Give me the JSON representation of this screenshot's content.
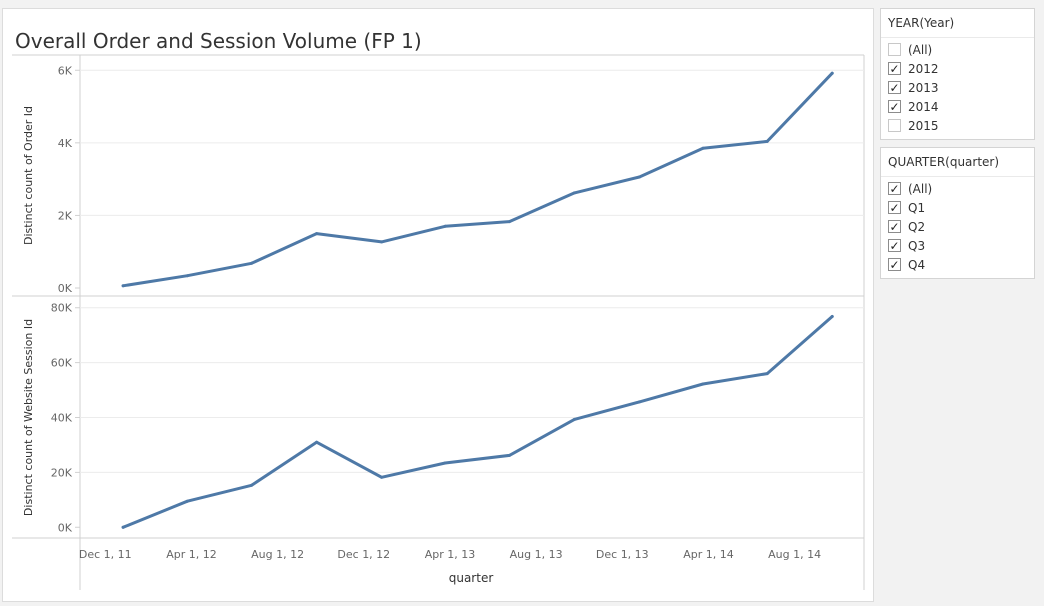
{
  "title": "Overall Order and Session Volume (FP 1)",
  "filters": {
    "year": {
      "title": "YEAR(Year)",
      "items": [
        {
          "label": "(All)",
          "checked": false
        },
        {
          "label": "2012",
          "checked": true
        },
        {
          "label": "2013",
          "checked": true
        },
        {
          "label": "2014",
          "checked": true
        },
        {
          "label": "2015",
          "checked": false
        }
      ]
    },
    "quarter": {
      "title": "QUARTER(quarter)",
      "items": [
        {
          "label": "(All)",
          "checked": true
        },
        {
          "label": "Q1",
          "checked": true
        },
        {
          "label": "Q2",
          "checked": true
        },
        {
          "label": "Q3",
          "checked": true
        },
        {
          "label": "Q4",
          "checked": true
        }
      ]
    }
  },
  "colors": {
    "line": "#4e79a7",
    "grid": "#ececec",
    "axis": "#d0d0d0",
    "text": "#666666"
  },
  "chart_data": {
    "type": "line",
    "xlabel": "quarter",
    "x_tick_labels": [
      "Dec 1, 11",
      "Apr 1, 12",
      "Aug 1, 12",
      "Dec 1, 12",
      "Apr 1, 13",
      "Aug 1, 13",
      "Dec 1, 13",
      "Apr 1, 14",
      "Aug 1, 14"
    ],
    "x": [
      "2012-01-01",
      "2012-04-01",
      "2012-07-01",
      "2012-10-01",
      "2013-01-01",
      "2013-04-01",
      "2013-07-01",
      "2013-10-01",
      "2014-01-01",
      "2014-04-01",
      "2014-07-01",
      "2014-10-01"
    ],
    "panels": [
      {
        "ylabel": "Distinct count of Order Id",
        "ylim": [
          0,
          6200
        ],
        "yticks": [
          0,
          2000,
          4000,
          6000
        ],
        "ytick_labels": [
          "0K",
          "2K",
          "4K",
          "6K"
        ],
        "values": [
          60,
          340,
          680,
          1500,
          1270,
          1700,
          1830,
          2620,
          3060,
          3850,
          4040,
          5920
        ]
      },
      {
        "ylabel": "Distinct count of Website Session Id",
        "ylim": [
          -1000,
          81000
        ],
        "yticks": [
          0,
          20000,
          40000,
          60000,
          80000
        ],
        "ytick_labels": [
          "0K",
          "20K",
          "40K",
          "60K",
          "80K"
        ],
        "values": [
          0,
          9500,
          15300,
          31000,
          18200,
          23400,
          26200,
          39300,
          45700,
          52200,
          56000,
          76800
        ]
      }
    ]
  }
}
